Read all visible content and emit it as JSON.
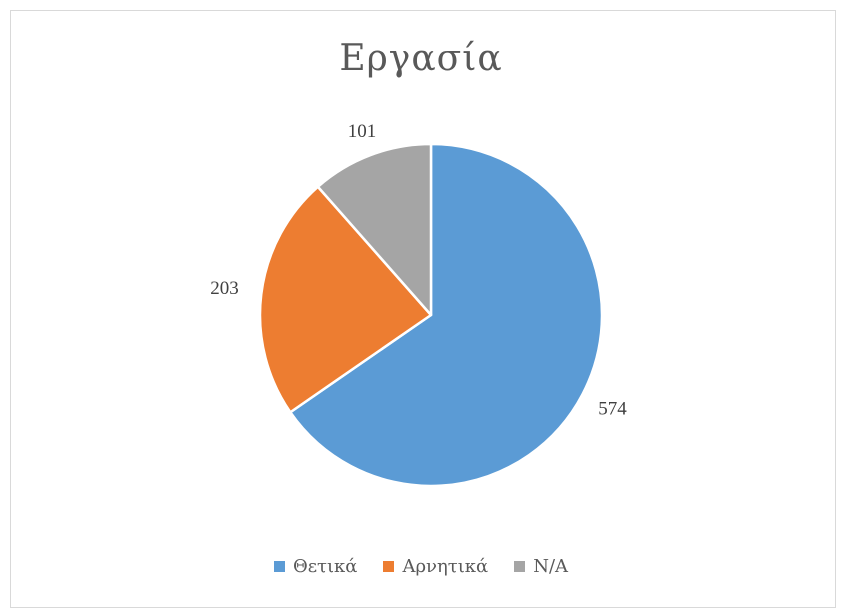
{
  "chart_data": {
    "type": "pie",
    "title": "Εργασία",
    "categories": [
      "Θετικά",
      "Αρνητικά",
      "N/A"
    ],
    "values": [
      574,
      203,
      101
    ],
    "colors": [
      "#5B9BD5",
      "#ED7D31",
      "#A5A5A5"
    ],
    "legend": "bottom",
    "start_angle_deg": 0,
    "direction": "clockwise"
  }
}
